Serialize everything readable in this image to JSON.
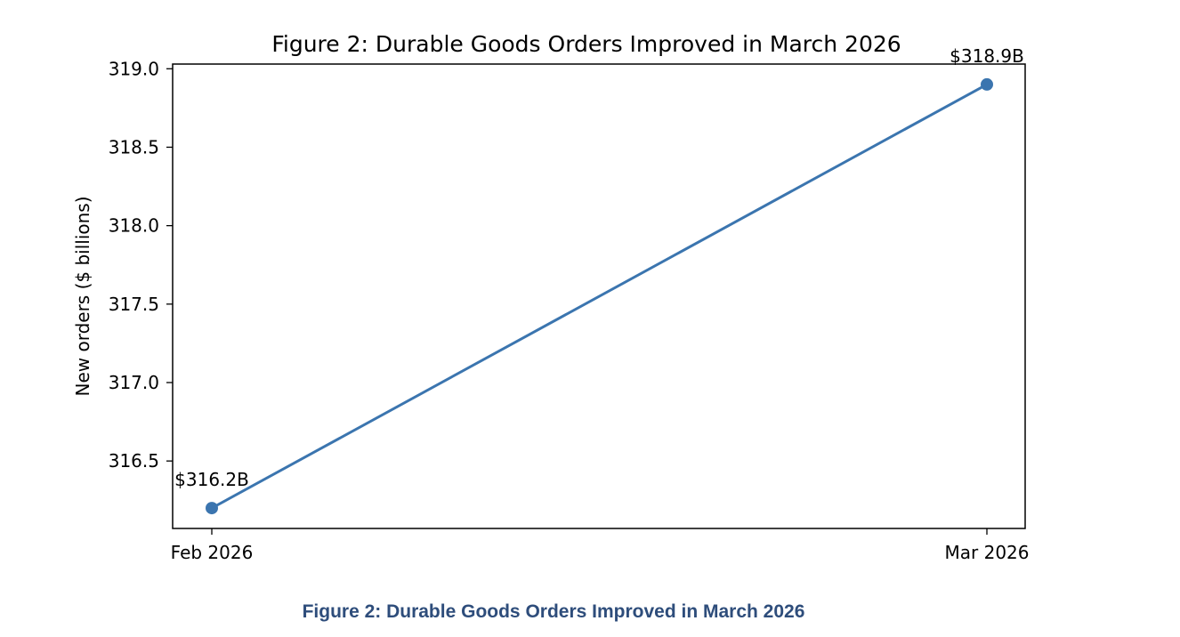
{
  "caption": "Figure 2: Durable Goods Orders Improved in March 2026",
  "colors": {
    "series": "#3b75af",
    "caption": "#2e4d7b",
    "frame": "#000000"
  },
  "chart_data": {
    "type": "line",
    "title": "Figure 2: Durable Goods Orders Improved in March 2026",
    "xlabel": "",
    "ylabel": "New orders ($ billions)",
    "categories": [
      "Feb 2026",
      "Mar 2026"
    ],
    "series": [
      {
        "values": [
          316.2,
          318.9
        ],
        "data_labels": [
          "$316.2B",
          "$318.9B"
        ],
        "marker": "circle"
      }
    ],
    "ylim": [
      316.07,
      319.03
    ],
    "yticks": [
      316.5,
      317.0,
      317.5,
      318.0,
      318.5,
      319.0
    ],
    "ytick_labels": [
      "316.5",
      "317.0",
      "317.5",
      "318.0",
      "318.5",
      "319.0"
    ],
    "grid": false,
    "legend": "none"
  }
}
